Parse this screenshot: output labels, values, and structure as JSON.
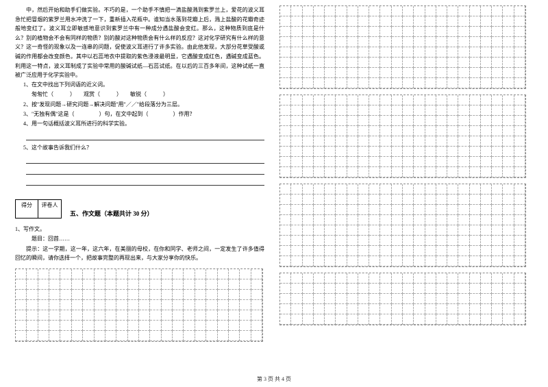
{
  "leftColumn": {
    "passage": "中，然后开始和助手们做实验。不巧的是，一个助手不慎把一滴盐酸溅到紫罗兰上，爱花的波义耳急忙把冒烟的紫罗兰用水冲洗了一下，重新插入花瓶中。谁知当水落到花瓣上后，溅上盐酸的花瓣奇迹般地变红了。波义耳立即敏感地意识到紫罗兰中有一种成分遇盐酸会变红。那么，这种物质到底是什么？别的植物会不会有同样的物质？别的酸对这种物质会有什么样的反应？这对化学研究有什么样的意义？这一奇怪的现象以及一连串的问题，促使波义耳进行了许多实验。由此他发现，大部分花草受酸或碱的作用都会改变颜色，其中以石蕊地衣中提取的紫色浸液最明显，它遇酸变成红色，遇碱变成蓝色。利用这一特点，波义耳制成了实验中常用的酸碱试纸—石蕊试纸。在以后的三百多年间，这种试纸一直被广泛应用于化学实验中。",
    "q1_label": "1、在文中找出下列词语的近义词。",
    "q1_words_a": "匆匆忙（",
    "q1_words_b": "）　　观赏（",
    "q1_words_c": "）　　敏锐（",
    "q1_words_d": "）",
    "q2": "2、按\"发现问题→研究问题→解决问题\"用\"／／\"给段落分为三层。",
    "q3_a": "3、\"无独有偶\"这是（",
    "q3_b": "）句，在文中起到（",
    "q3_c": "）作用？",
    "q4": "4、用一句话概括波义耳所进行的科学实验。",
    "q5": "5、这个故事告诉我们什么？",
    "score_a": "得分",
    "score_b": "评卷人",
    "section5": "五、作文题（本题共计 30 分）",
    "essay_label": "1、写作文。",
    "essay_topic": "题目：回首……",
    "essay_hint": "提示：这一学期，这一年，这六年，在美丽的母校，在你和同学、老师之间，一定发生了许多值得回忆的瞬间，请你选择一个，把故事完整的再现出来，与大家分享你的快乐。"
  },
  "footer": "第 3 页 共 4 页",
  "grids": {
    "left_cols": 22,
    "left_rows": 7,
    "r1_cols": 22,
    "r1_rows": 8,
    "r2_cols": 22,
    "r2_rows": 8,
    "r3_cols": 22,
    "r3_rows": 8,
    "r4_cols": 22,
    "r4_rows": 5
  },
  "style": {
    "text_color": "#000000",
    "bg_color": "#ffffff",
    "grid_border": "#aaaaaa",
    "font_size_body": 8,
    "font_size_title": 9
  }
}
